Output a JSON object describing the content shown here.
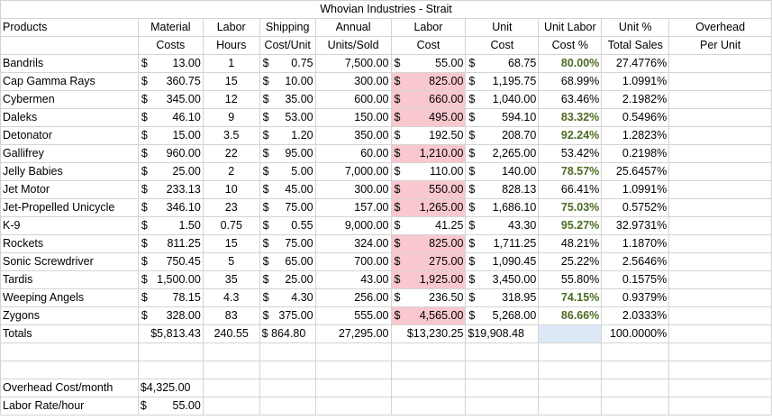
{
  "sheet_title": "Whovian Industries - Strait",
  "headers_row1": [
    "Products",
    "Material",
    "Labor",
    "Shipping",
    "Annual",
    "Labor",
    "Unit",
    "Unit Labor",
    "Unit %",
    "Overhead"
  ],
  "headers_row2": [
    "",
    "Costs",
    "Hours",
    "Cost/Unit",
    "Units/Sold",
    "Cost",
    "Cost",
    "Cost %",
    "Total Sales",
    "Per Unit"
  ],
  "rows": [
    {
      "product": "Bandrils",
      "material": "13.00",
      "hours": "1",
      "shipping": "0.75",
      "units": "7,500.00",
      "labor_cost": "55.00",
      "unit_cost": "68.75",
      "pct": "80.00%",
      "sales": "27.4776%",
      "pink": false,
      "green": true
    },
    {
      "product": "Cap Gamma Rays",
      "material": "360.75",
      "hours": "15",
      "shipping": "10.00",
      "units": "300.00",
      "labor_cost": "825.00",
      "unit_cost": "1,195.75",
      "pct": "68.99%",
      "sales": "1.0991%",
      "pink": true,
      "green": false
    },
    {
      "product": "Cybermen",
      "material": "345.00",
      "hours": "12",
      "shipping": "35.00",
      "units": "600.00",
      "labor_cost": "660.00",
      "unit_cost": "1,040.00",
      "pct": "63.46%",
      "sales": "2.1982%",
      "pink": true,
      "green": false
    },
    {
      "product": "Daleks",
      "material": "46.10",
      "hours": "9",
      "shipping": "53.00",
      "units": "150.00",
      "labor_cost": "495.00",
      "unit_cost": "594.10",
      "pct": "83.32%",
      "sales": "0.5496%",
      "pink": true,
      "green": true
    },
    {
      "product": "Detonator",
      "material": "15.00",
      "hours": "3.5",
      "shipping": "1.20",
      "units": "350.00",
      "labor_cost": "192.50",
      "unit_cost": "208.70",
      "pct": "92.24%",
      "sales": "1.2823%",
      "pink": false,
      "green": true
    },
    {
      "product": "Gallifrey",
      "material": "960.00",
      "hours": "22",
      "shipping": "95.00",
      "units": "60.00",
      "labor_cost": "1,210.00",
      "unit_cost": "2,265.00",
      "pct": "53.42%",
      "sales": "0.2198%",
      "pink": true,
      "green": false
    },
    {
      "product": "Jelly Babies",
      "material": "25.00",
      "hours": "2",
      "shipping": "5.00",
      "units": "7,000.00",
      "labor_cost": "110.00",
      "unit_cost": "140.00",
      "pct": "78.57%",
      "sales": "25.6457%",
      "pink": false,
      "green": true
    },
    {
      "product": "Jet Motor",
      "material": "233.13",
      "hours": "10",
      "shipping": "45.00",
      "units": "300.00",
      "labor_cost": "550.00",
      "unit_cost": "828.13",
      "pct": "66.41%",
      "sales": "1.0991%",
      "pink": true,
      "green": false
    },
    {
      "product": "Jet-Propelled Unicycle",
      "material": "346.10",
      "hours": "23",
      "shipping": "75.00",
      "units": "157.00",
      "labor_cost": "1,265.00",
      "unit_cost": "1,686.10",
      "pct": "75.03%",
      "sales": "0.5752%",
      "pink": true,
      "green": true
    },
    {
      "product": "K-9",
      "material": "1.50",
      "hours": "0.75",
      "shipping": "0.55",
      "units": "9,000.00",
      "labor_cost": "41.25",
      "unit_cost": "43.30",
      "pct": "95.27%",
      "sales": "32.9731%",
      "pink": false,
      "green": true
    },
    {
      "product": "Rockets",
      "material": "811.25",
      "hours": "15",
      "shipping": "75.00",
      "units": "324.00",
      "labor_cost": "825.00",
      "unit_cost": "1,711.25",
      "pct": "48.21%",
      "sales": "1.1870%",
      "pink": true,
      "green": false
    },
    {
      "product": "Sonic Screwdriver",
      "material": "750.45",
      "hours": "5",
      "shipping": "65.00",
      "units": "700.00",
      "labor_cost": "275.00",
      "unit_cost": "1,090.45",
      "pct": "25.22%",
      "sales": "2.5646%",
      "pink": true,
      "green": false
    },
    {
      "product": "Tardis",
      "material": "1,500.00",
      "hours": "35",
      "shipping": "25.00",
      "units": "43.00",
      "labor_cost": "1,925.00",
      "unit_cost": "3,450.00",
      "pct": "55.80%",
      "sales": "0.1575%",
      "pink": true,
      "green": false
    },
    {
      "product": "Weeping Angels",
      "material": "78.15",
      "hours": "4.3",
      "shipping": "4.30",
      "units": "256.00",
      "labor_cost": "236.50",
      "unit_cost": "318.95",
      "pct": "74.15%",
      "sales": "0.9379%",
      "pink": false,
      "green": true
    },
    {
      "product": "Zygons",
      "material": "328.00",
      "hours": "83",
      "shipping": "375.00",
      "units": "555.00",
      "labor_cost": "4,565.00",
      "unit_cost": "5,268.00",
      "pct": "86.66%",
      "sales": "2.0333%",
      "pink": true,
      "green": true
    }
  ],
  "totals": {
    "label": "Totals",
    "material": "$5,813.43",
    "hours": "240.55",
    "shipping": "$ 864.80",
    "units": "27,295.00",
    "labor_cost": "$13,230.25",
    "unit_cost": "$19,908.48",
    "sales": "100.0000%"
  },
  "footer": {
    "overhead_label": "Overhead Cost/month",
    "overhead_value": "$4,325.00",
    "rate_label": "Labor Rate/hour",
    "rate_sym": "$",
    "rate_value": "55.00"
  },
  "currency_symbol": "$",
  "colors": {
    "pink": "#f9c7ce",
    "green_text": "#4e6b22",
    "selected_blue": "#dde9f7",
    "gridline": "#d4d4d4"
  }
}
